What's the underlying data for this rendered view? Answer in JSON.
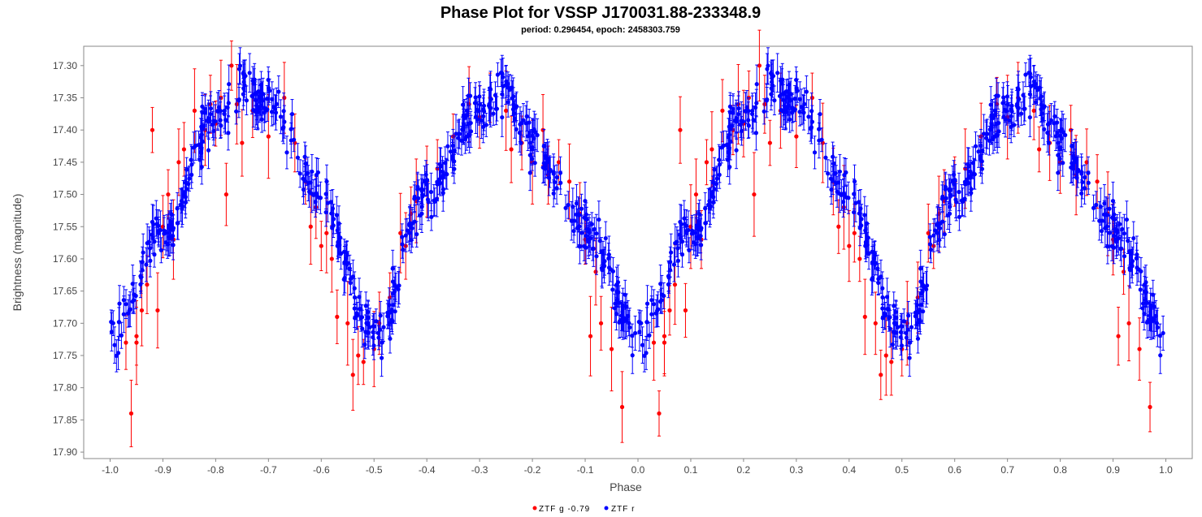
{
  "chart_data": {
    "type": "scatter",
    "title": "Phase Plot for VSSP J170031.88-233348.9",
    "subtitle": "period: 0.296454, epoch: 2458303.759",
    "xlabel": "Phase",
    "ylabel": "Brightness (magnitude)",
    "xlim": [
      -1.05,
      1.05
    ],
    "ylim": [
      17.91,
      17.27
    ],
    "y_inverted": true,
    "x_ticks": [
      "-1.0",
      "-0.9",
      "-0.8",
      "-0.7",
      "-0.6",
      "-0.5",
      "-0.4",
      "-0.3",
      "-0.2",
      "-0.1",
      "0.0",
      "0.1",
      "0.2",
      "0.3",
      "0.4",
      "0.5",
      "0.6",
      "0.7",
      "0.8",
      "0.9",
      "1.0"
    ],
    "y_ticks": [
      "17.30",
      "17.35",
      "17.40",
      "17.45",
      "17.50",
      "17.55",
      "17.60",
      "17.65",
      "17.70",
      "17.75",
      "17.80",
      "17.85",
      "17.90"
    ],
    "legend_position": "bottom-center",
    "grid": false,
    "light_curve": {
      "phase": [
        0.0,
        0.1,
        0.2,
        0.25,
        0.3,
        0.4,
        0.5,
        0.6,
        0.7,
        0.75,
        0.8,
        0.9,
        1.0
      ],
      "magnitude": [
        17.72,
        17.56,
        17.38,
        17.33,
        17.36,
        17.5,
        17.72,
        17.5,
        17.37,
        17.34,
        17.42,
        17.55,
        17.72
      ]
    },
    "series": [
      {
        "name": "ZTF g -0.79",
        "color": "#ff0000",
        "points": [
          [
            0.04,
            17.84
          ],
          [
            0.03,
            17.73
          ],
          [
            0.05,
            17.73
          ],
          [
            0.06,
            17.68
          ],
          [
            0.07,
            17.64
          ],
          [
            0.08,
            17.4
          ],
          [
            0.09,
            17.68
          ],
          [
            0.1,
            17.55
          ],
          [
            0.11,
            17.5
          ],
          [
            0.12,
            17.57
          ],
          [
            0.13,
            17.45
          ],
          [
            0.14,
            17.43
          ],
          [
            0.16,
            17.37
          ],
          [
            0.18,
            17.4
          ],
          [
            0.19,
            17.36
          ],
          [
            0.2,
            17.39
          ],
          [
            0.21,
            17.35
          ],
          [
            0.22,
            17.5
          ],
          [
            0.23,
            17.3
          ],
          [
            0.24,
            17.36
          ],
          [
            0.25,
            17.42
          ],
          [
            0.27,
            17.37
          ],
          [
            0.3,
            17.41
          ],
          [
            0.33,
            17.35
          ],
          [
            0.35,
            17.42
          ],
          [
            0.37,
            17.48
          ],
          [
            0.38,
            17.55
          ],
          [
            0.39,
            17.52
          ],
          [
            0.4,
            17.58
          ],
          [
            0.41,
            17.56
          ],
          [
            0.42,
            17.6
          ],
          [
            0.43,
            17.69
          ],
          [
            0.45,
            17.7
          ],
          [
            0.46,
            17.78
          ],
          [
            0.47,
            17.75
          ],
          [
            0.48,
            17.76
          ],
          [
            0.5,
            17.74
          ],
          [
            0.51,
            17.7
          ],
          [
            0.53,
            17.66
          ],
          [
            0.55,
            17.56
          ],
          [
            0.56,
            17.58
          ],
          [
            0.57,
            17.53
          ],
          [
            0.58,
            17.51
          ],
          [
            0.6,
            17.48
          ],
          [
            0.62,
            17.46
          ],
          [
            0.65,
            17.41
          ],
          [
            0.68,
            17.36
          ],
          [
            0.7,
            17.38
          ],
          [
            0.72,
            17.35
          ],
          [
            0.75,
            17.37
          ],
          [
            0.76,
            17.43
          ],
          [
            0.78,
            17.42
          ],
          [
            0.8,
            17.45
          ],
          [
            0.82,
            17.4
          ],
          [
            0.83,
            17.47
          ],
          [
            0.85,
            17.45
          ],
          [
            0.87,
            17.48
          ],
          [
            0.89,
            17.53
          ],
          [
            0.9,
            17.57
          ],
          [
            0.91,
            17.72
          ],
          [
            0.92,
            17.62
          ],
          [
            0.93,
            17.7
          ],
          [
            0.95,
            17.74
          ],
          [
            0.97,
            17.83
          ],
          [
            0.05,
            17.72
          ],
          [
            -0.96,
            17.84
          ],
          [
            -0.97,
            17.73
          ],
          [
            -0.95,
            17.73
          ],
          [
            -0.94,
            17.68
          ],
          [
            -0.93,
            17.64
          ],
          [
            -0.92,
            17.4
          ],
          [
            -0.91,
            17.68
          ],
          [
            -0.9,
            17.55
          ],
          [
            -0.89,
            17.5
          ],
          [
            -0.88,
            17.57
          ],
          [
            -0.87,
            17.45
          ],
          [
            -0.86,
            17.43
          ],
          [
            -0.84,
            17.37
          ],
          [
            -0.82,
            17.4
          ],
          [
            -0.81,
            17.36
          ],
          [
            -0.8,
            17.39
          ],
          [
            -0.79,
            17.35
          ],
          [
            -0.78,
            17.5
          ],
          [
            -0.77,
            17.3
          ],
          [
            -0.76,
            17.36
          ],
          [
            -0.75,
            17.42
          ],
          [
            -0.73,
            17.37
          ],
          [
            -0.7,
            17.41
          ],
          [
            -0.67,
            17.35
          ],
          [
            -0.65,
            17.42
          ],
          [
            -0.63,
            17.48
          ],
          [
            -0.62,
            17.55
          ],
          [
            -0.61,
            17.52
          ],
          [
            -0.6,
            17.58
          ],
          [
            -0.59,
            17.56
          ],
          [
            -0.58,
            17.6
          ],
          [
            -0.57,
            17.69
          ],
          [
            -0.55,
            17.7
          ],
          [
            -0.54,
            17.78
          ],
          [
            -0.53,
            17.75
          ],
          [
            -0.52,
            17.76
          ],
          [
            -0.5,
            17.74
          ],
          [
            -0.49,
            17.7
          ],
          [
            -0.47,
            17.66
          ],
          [
            -0.45,
            17.56
          ],
          [
            -0.44,
            17.58
          ],
          [
            -0.43,
            17.53
          ],
          [
            -0.42,
            17.51
          ],
          [
            -0.4,
            17.48
          ],
          [
            -0.38,
            17.46
          ],
          [
            -0.35,
            17.41
          ],
          [
            -0.32,
            17.36
          ],
          [
            -0.3,
            17.38
          ],
          [
            -0.28,
            17.35
          ],
          [
            -0.25,
            17.37
          ],
          [
            -0.24,
            17.43
          ],
          [
            -0.22,
            17.42
          ],
          [
            -0.2,
            17.45
          ],
          [
            -0.18,
            17.4
          ],
          [
            -0.17,
            17.47
          ],
          [
            -0.15,
            17.45
          ],
          [
            -0.13,
            17.48
          ],
          [
            -0.11,
            17.53
          ],
          [
            -0.1,
            17.57
          ],
          [
            -0.09,
            17.72
          ],
          [
            -0.08,
            17.62
          ],
          [
            -0.07,
            17.7
          ],
          [
            -0.05,
            17.74
          ],
          [
            -0.03,
            17.83
          ],
          [
            -0.95,
            17.72
          ]
        ]
      },
      {
        "name": "ZTF r",
        "color": "#0000ff",
        "points": []
      }
    ]
  },
  "legend": {
    "g_label": "ZTF g -0.79",
    "r_label": "ZTF r"
  }
}
